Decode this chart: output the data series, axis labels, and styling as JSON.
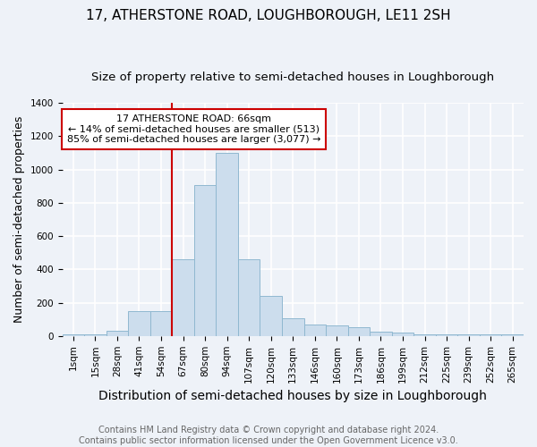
{
  "title": "17, ATHERSTONE ROAD, LOUGHBOROUGH, LE11 2SH",
  "subtitle": "Size of property relative to semi-detached houses in Loughborough",
  "xlabel": "Distribution of semi-detached houses by size in Loughborough",
  "ylabel": "Number of semi-detached properties",
  "footer": "Contains HM Land Registry data © Crown copyright and database right 2024.\nContains public sector information licensed under the Open Government Licence v3.0.",
  "categories": [
    "1sqm",
    "15sqm",
    "28sqm",
    "41sqm",
    "54sqm",
    "67sqm",
    "80sqm",
    "94sqm",
    "107sqm",
    "120sqm",
    "133sqm",
    "146sqm",
    "160sqm",
    "173sqm",
    "186sqm",
    "199sqm",
    "212sqm",
    "225sqm",
    "239sqm",
    "252sqm",
    "265sqm"
  ],
  "values": [
    8,
    10,
    32,
    148,
    148,
    462,
    905,
    1100,
    462,
    242,
    105,
    68,
    65,
    55,
    27,
    20,
    12,
    10,
    10,
    8,
    10
  ],
  "bar_color": "#ccdded",
  "bar_edge_color": "#90b8d0",
  "vline_x_index": 5,
  "vline_color": "#cc0000",
  "annotation_text": "17 ATHERSTONE ROAD: 66sqm\n← 14% of semi-detached houses are smaller (513)\n85% of semi-detached houses are larger (3,077) →",
  "annotation_box_color": "#ffffff",
  "annotation_box_edge": "#cc0000",
  "ylim": [
    0,
    1400
  ],
  "yticks": [
    0,
    200,
    400,
    600,
    800,
    1000,
    1200,
    1400
  ],
  "background_color": "#eef2f8",
  "grid_color": "#ffffff",
  "title_fontsize": 11,
  "subtitle_fontsize": 9.5,
  "xlabel_fontsize": 10,
  "ylabel_fontsize": 9,
  "tick_fontsize": 7.5,
  "footer_fontsize": 7,
  "annotation_fontsize": 8
}
